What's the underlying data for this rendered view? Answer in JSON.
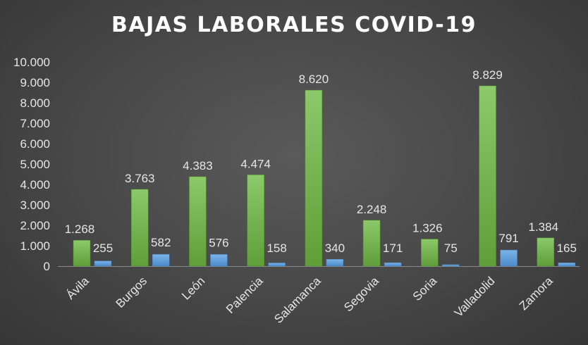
{
  "chart_data": {
    "type": "bar",
    "title": "BAJAS LABORALES COVID-19",
    "categories": [
      "Ávila",
      "Burgos",
      "León",
      "Palencia",
      "Salamanca",
      "Segovia",
      "Soria",
      "Valladolid",
      "Zamora"
    ],
    "series": [
      {
        "values": [
          1268,
          3763,
          4383,
          4474,
          8620,
          2248,
          1326,
          8829,
          1384
        ],
        "labels": [
          "1.268",
          "3.763",
          "4.383",
          "4.474",
          "8.620",
          "2.248",
          "1.326",
          "8.829",
          "1.384"
        ],
        "color": "#70ad47"
      },
      {
        "values": [
          255,
          582,
          576,
          158,
          340,
          171,
          75,
          791,
          165
        ],
        "labels": [
          "255",
          "582",
          "576",
          "158",
          "340",
          "171",
          "75",
          "791",
          "165"
        ],
        "color": "#5b9bd5"
      }
    ],
    "ylim": [
      0,
      10000
    ],
    "yticks": [
      0,
      1000,
      2000,
      3000,
      4000,
      5000,
      6000,
      7000,
      8000,
      9000,
      10000
    ],
    "ytick_labels": [
      "0",
      "1.000",
      "2.000",
      "3.000",
      "4.000",
      "5.000",
      "6.000",
      "7.000",
      "8.000",
      "9.000",
      "10.000"
    ],
    "xlabel": "",
    "ylabel": "",
    "grid": false,
    "legend": "none"
  }
}
